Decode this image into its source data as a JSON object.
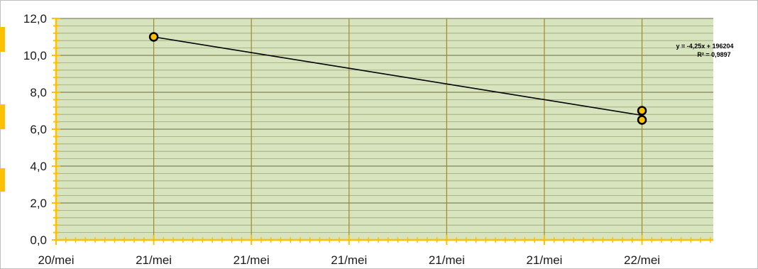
{
  "chart_data": {
    "type": "scatter",
    "title": "",
    "xlabel": "",
    "ylabel": "",
    "x_tick_labels": [
      "20/mei",
      "21/mei",
      "21/mei",
      "21/mei",
      "21/mei",
      "21/mei",
      "22/mei"
    ],
    "y_tick_labels": [
      "0,0",
      "2,0",
      "4,0",
      "6,0",
      "8,0",
      "10,0",
      "12,0"
    ],
    "ylim": [
      0,
      12
    ],
    "y_major_step": 2,
    "y_minor_step": 0.4,
    "grid": true,
    "legend": "none",
    "series": [
      {
        "points": [
          {
            "x": "21/mei",
            "y": 11.0
          },
          {
            "x": "22/mei",
            "y": 7.0
          },
          {
            "x": "22/mei",
            "y": 6.5
          }
        ]
      }
    ],
    "trendline": {
      "type": "linear",
      "start": {
        "x": "21/mei",
        "y": 11.0
      },
      "end": {
        "x": "22/mei",
        "y": 6.75
      },
      "equation": "y = -4,25x + 196204",
      "r_squared": "R² = 0,9897"
    },
    "colors": {
      "plot_background": "#d7e4bd",
      "major_grid": "#6b6b40",
      "minor_grid": "#9aa678",
      "vertical_grid": "#a08a2a",
      "axis": "#ffc000",
      "marker_fill": "#ffc000",
      "marker_edge": "#000000",
      "trendline": "#000000"
    }
  }
}
